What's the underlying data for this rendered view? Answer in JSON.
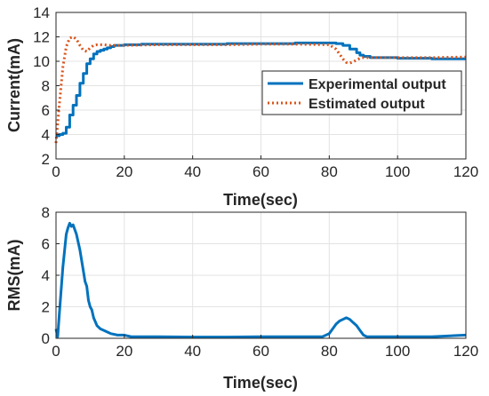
{
  "chart_data": [
    {
      "type": "line",
      "xlabel": "Time(sec)",
      "ylabel": "Current(mA)",
      "xlim": [
        0,
        120
      ],
      "ylim": [
        2,
        14
      ],
      "xticks": [
        0,
        20,
        40,
        60,
        80,
        100,
        120
      ],
      "yticks": [
        2,
        4,
        6,
        8,
        10,
        12,
        14
      ],
      "grid": true,
      "legend_position": "center-right",
      "series": [
        {
          "name": "Experimental output",
          "style": "solid-step",
          "color": "#0072BD",
          "x": [
            0,
            1,
            2,
            3,
            4,
            5,
            6,
            7,
            8,
            9,
            10,
            11,
            12,
            13,
            14,
            15,
            16,
            17,
            18,
            20,
            22,
            25,
            30,
            40,
            50,
            60,
            70,
            78,
            80,
            82,
            84,
            86,
            88,
            89,
            90,
            92,
            95,
            100,
            110,
            120
          ],
          "y": [
            3.9,
            4.0,
            4.1,
            4.6,
            5.6,
            6.4,
            7.2,
            8.2,
            9.0,
            9.8,
            10.2,
            10.6,
            10.8,
            10.9,
            11.0,
            11.1,
            11.2,
            11.3,
            11.3,
            11.35,
            11.35,
            11.4,
            11.4,
            11.4,
            11.45,
            11.45,
            11.5,
            11.5,
            11.5,
            11.45,
            11.3,
            11.0,
            10.7,
            10.5,
            10.4,
            10.3,
            10.3,
            10.25,
            10.2,
            10.2
          ]
        },
        {
          "name": "Estimated output",
          "style": "dotted",
          "color": "#D95319",
          "x": [
            0,
            1,
            2,
            3,
            4,
            5,
            6,
            7,
            8,
            9,
            10,
            11,
            12,
            14,
            16,
            20,
            30,
            40,
            50,
            60,
            70,
            80,
            82,
            84,
            85,
            86,
            87,
            88,
            89,
            90,
            92,
            95,
            100,
            110,
            120
          ],
          "y": [
            3.3,
            6.5,
            9.5,
            11.2,
            11.9,
            12.0,
            11.8,
            11.3,
            10.9,
            10.8,
            11.1,
            11.3,
            11.35,
            11.35,
            11.3,
            11.3,
            11.35,
            11.35,
            11.35,
            11.4,
            11.4,
            11.35,
            11.0,
            10.2,
            9.9,
            9.85,
            9.95,
            10.1,
            10.25,
            10.3,
            10.3,
            10.3,
            10.3,
            10.3,
            10.35
          ]
        }
      ]
    },
    {
      "type": "line",
      "xlabel": "Time(sec)",
      "ylabel": "RMS(mA)",
      "xlim": [
        0,
        120
      ],
      "ylim": [
        0,
        8
      ],
      "xticks": [
        0,
        20,
        40,
        60,
        80,
        100,
        120
      ],
      "yticks": [
        0,
        2,
        4,
        6,
        8
      ],
      "grid": true,
      "series": [
        {
          "color": "#0072BD",
          "style": "solid",
          "x": [
            0,
            0.5,
            1,
            2,
            3,
            3.5,
            4,
            4.5,
            5,
            5.5,
            6,
            7,
            8,
            8.5,
            9,
            9.5,
            10,
            10.5,
            11,
            12,
            13,
            14,
            15,
            16,
            18,
            20,
            22,
            25,
            30,
            40,
            50,
            60,
            70,
            78,
            80,
            82,
            83,
            84,
            85,
            86,
            87,
            88,
            89,
            90,
            91,
            95,
            100,
            110,
            120
          ],
          "y": [
            0.6,
            0.1,
            1.6,
            4.5,
            6.6,
            7.0,
            7.3,
            7.1,
            7.2,
            6.9,
            6.6,
            5.6,
            4.3,
            3.6,
            3.3,
            2.4,
            2.0,
            1.8,
            1.3,
            0.8,
            0.6,
            0.5,
            0.4,
            0.3,
            0.2,
            0.2,
            0.1,
            0.1,
            0.1,
            0.08,
            0.08,
            0.1,
            0.1,
            0.1,
            0.3,
            0.9,
            1.1,
            1.2,
            1.3,
            1.2,
            1.0,
            0.8,
            0.5,
            0.2,
            0.1,
            0.1,
            0.1,
            0.1,
            0.2
          ]
        }
      ]
    }
  ]
}
